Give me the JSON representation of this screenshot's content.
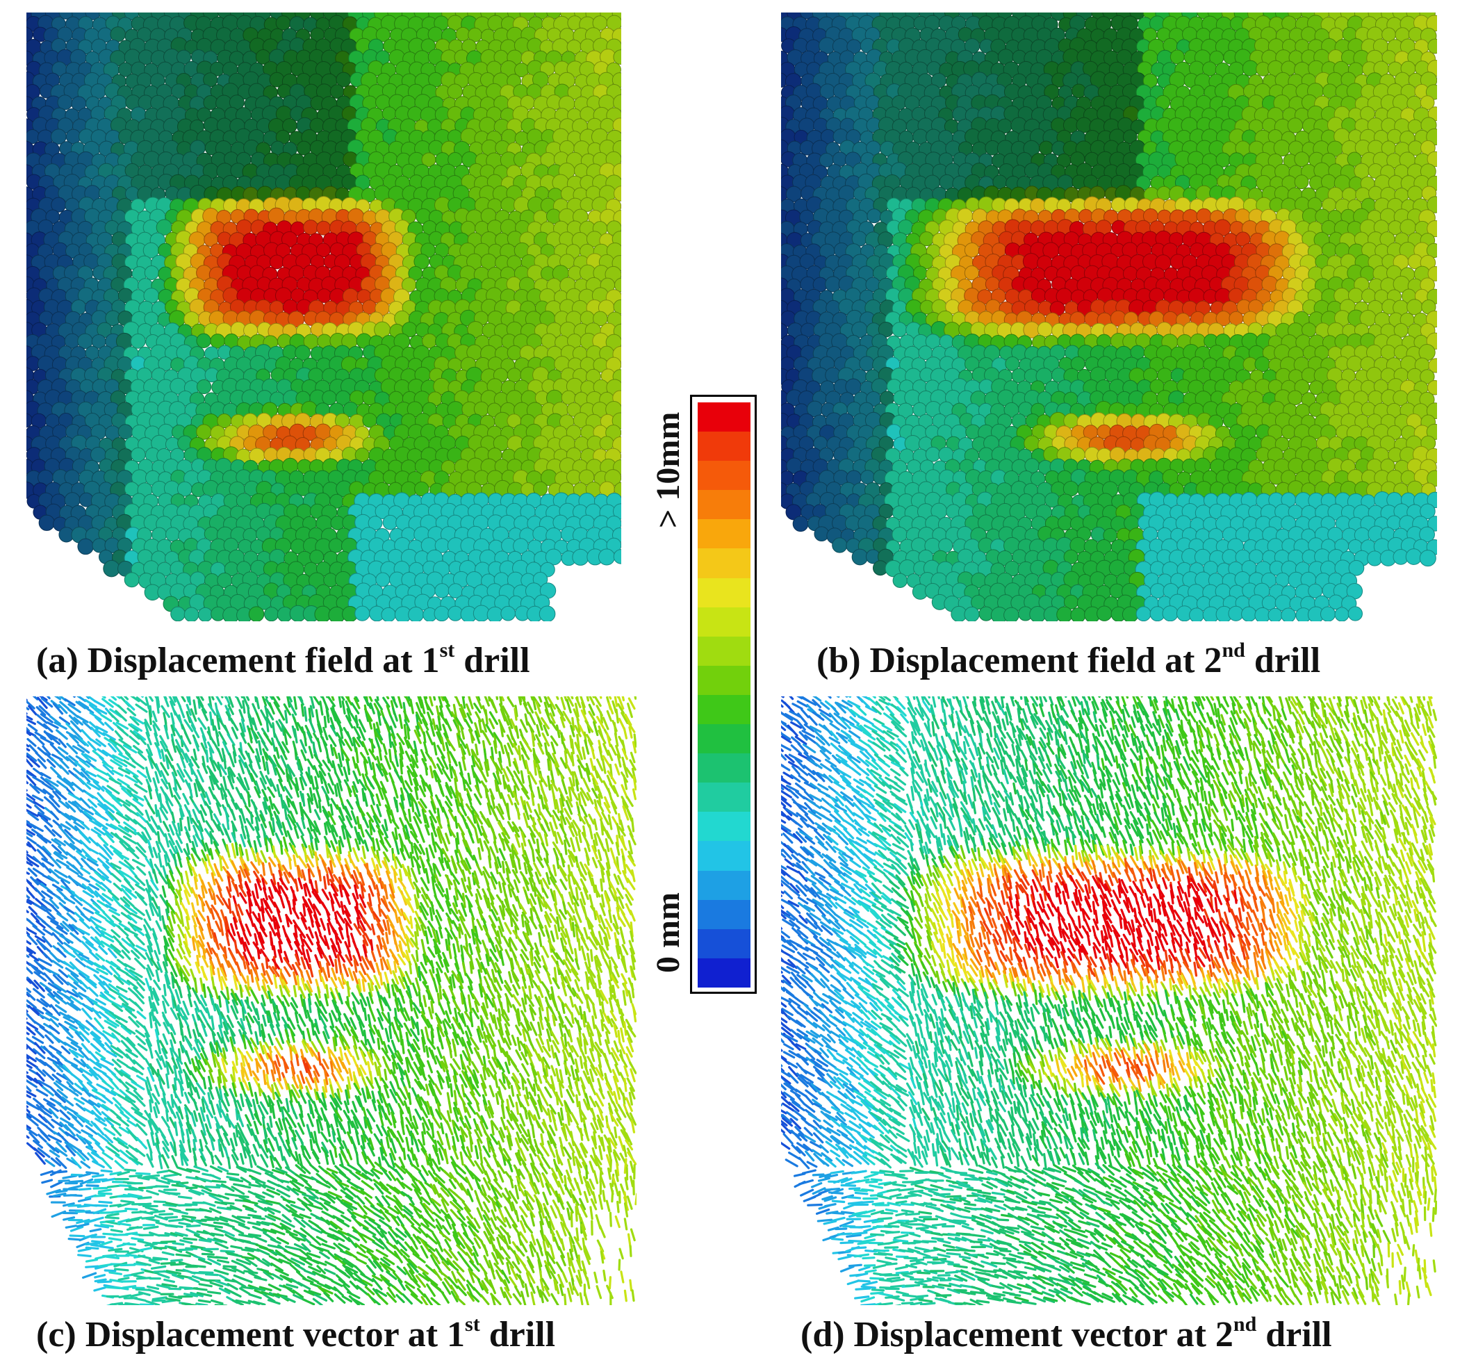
{
  "panels": [
    {
      "id": "a",
      "caption_pre": "(a) Displacement  field at 1",
      "caption_sup": "st",
      "caption_post": " drill",
      "kind": "particles",
      "stage": 1
    },
    {
      "id": "b",
      "caption_pre": "(b) Displacement  field at 2",
      "caption_sup": "nd",
      "caption_post": " drill",
      "kind": "particles",
      "stage": 2
    },
    {
      "id": "c",
      "caption_pre": "(c) Displacement vector at 1",
      "caption_sup": "st",
      "caption_post": " drill",
      "kind": "vectors",
      "stage": 1
    },
    {
      "id": "d",
      "caption_pre": "(d) Displacement vector at 2",
      "caption_sup": "nd",
      "caption_post": " drill",
      "kind": "vectors",
      "stage": 2
    }
  ],
  "colorbar": {
    "max_label": "> 10mm",
    "min_label": "0 mm",
    "colors": [
      "#e8000a",
      "#f03a0a",
      "#f55a0a",
      "#f77d0a",
      "#f9a70c",
      "#f4c818",
      "#e9e41e",
      "#c8e414",
      "#a0dc10",
      "#72d00c",
      "#3fc818",
      "#20c040",
      "#1cc270",
      "#20cca0",
      "#22d8d0",
      "#22c4e6",
      "#1ea0e4",
      "#1a7ae0",
      "#1650d8",
      "#1020d0"
    ]
  }
}
